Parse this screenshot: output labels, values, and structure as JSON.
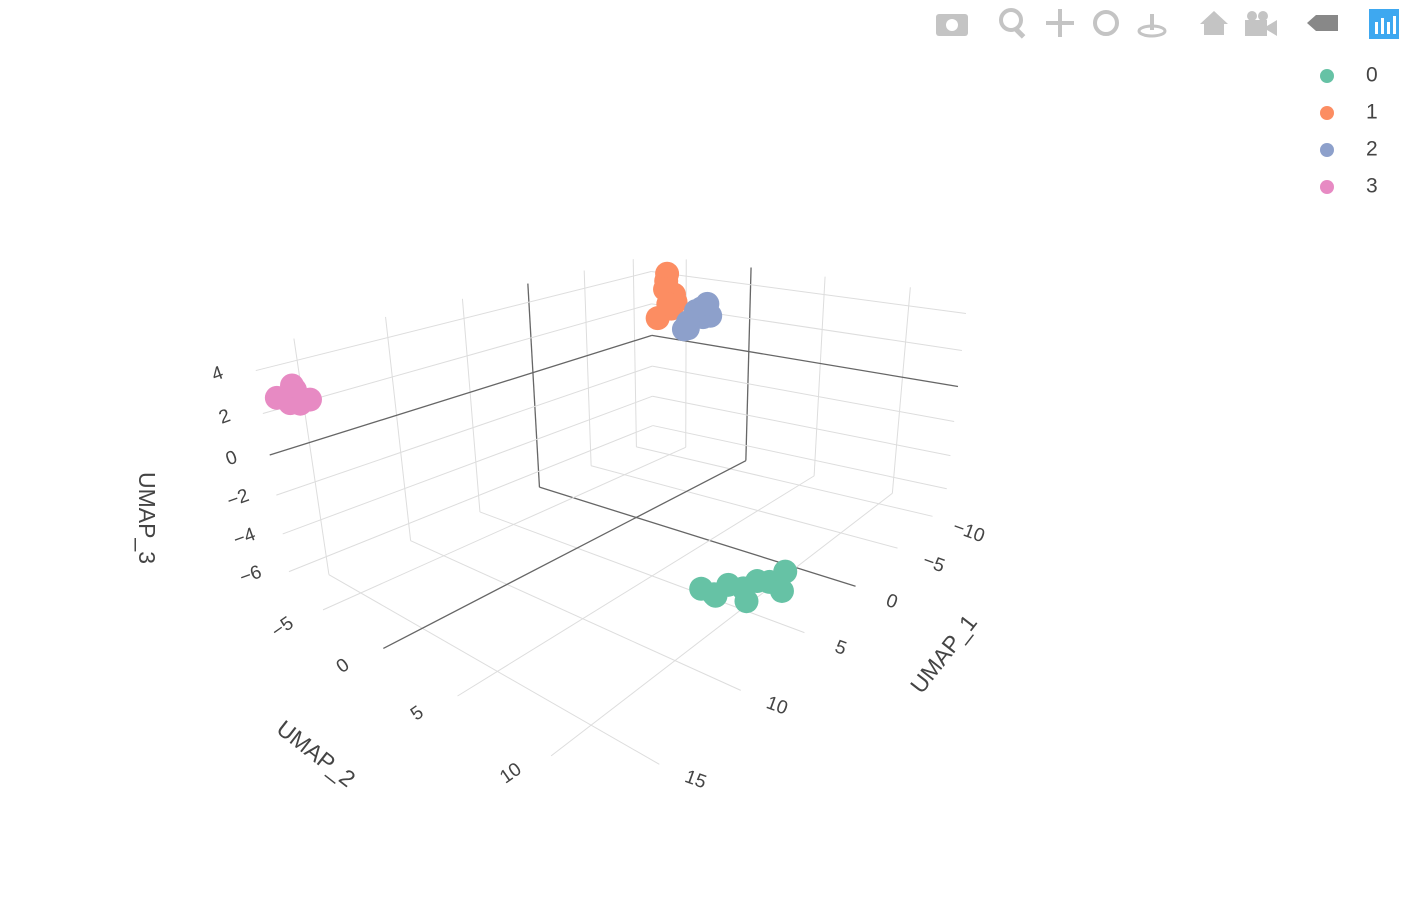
{
  "chart_data": {
    "type": "scatter3d",
    "x_label": "UMAP_1",
    "y_label": "UMAP_2",
    "z_label": "UMAP_3",
    "xlim": [
      -12,
      17
    ],
    "ylim": [
      -8,
      13
    ],
    "zlim": [
      -7,
      5
    ],
    "xticks": [
      {
        "value": -10,
        "label": "−10"
      },
      {
        "value": -5,
        "label": "−5"
      },
      0,
      5,
      10,
      15
    ],
    "yticks": [
      {
        "value": -5,
        "label": "−5"
      },
      0,
      5,
      10
    ],
    "zticks": [
      4,
      2,
      0,
      {
        "value": -2,
        "label": "−2"
      },
      {
        "value": -4,
        "label": "−4"
      },
      {
        "value": -6,
        "label": "−6"
      }
    ],
    "grid": true,
    "legend_position": "top-right",
    "series": [
      {
        "name": "0",
        "color": "#66c2a5",
        "x": [
          4.2,
          4.8,
          5.5,
          6.1,
          6.8,
          7.4,
          7.9,
          5.0,
          6.5,
          7.6
        ],
        "y": [
          11.6,
          11.2,
          11.0,
          10.7,
          10.4,
          10.1,
          9.8,
          11.9,
          11.1,
          10.3
        ],
        "z": [
          -4.8,
          -5.2,
          -4.9,
          -5.1,
          -4.7,
          -5.0,
          -4.6,
          -5.3,
          -5.4,
          -4.9
        ]
      },
      {
        "name": "1",
        "color": "#fc8d62",
        "x": [
          -10.5,
          -10.8,
          -11.2,
          -10.9,
          -11.5,
          -10.6,
          -11.0,
          -11.3
        ],
        "y": [
          -5.5,
          -5.8,
          -6.2,
          -5.1,
          -5.9,
          -6.4,
          -5.3,
          -6.0
        ],
        "z": [
          4.3,
          3.8,
          3.2,
          2.6,
          2.0,
          1.5,
          3.0,
          2.3
        ]
      },
      {
        "name": "2",
        "color": "#8da0cb",
        "x": [
          -11.0,
          -10.6,
          -11.4,
          -10.8,
          -11.2,
          -10.5,
          -11.6,
          -10.9
        ],
        "y": [
          -3.5,
          -2.8,
          -3.2,
          -4.0,
          -2.5,
          -3.8,
          -3.0,
          -4.4
        ],
        "z": [
          2.2,
          2.5,
          1.8,
          1.5,
          2.0,
          1.2,
          2.6,
          1.0
        ]
      },
      {
        "name": "3",
        "color": "#e78ac3",
        "x": [
          15.8,
          16.3,
          15.5,
          16.6,
          16.0,
          15.2
        ],
        "y": [
          -7.0,
          -6.6,
          -7.3,
          -7.2,
          -6.8,
          -6.9
        ],
        "z": [
          3.0,
          2.6,
          2.2,
          2.8,
          3.3,
          2.4
        ]
      }
    ]
  }
}
